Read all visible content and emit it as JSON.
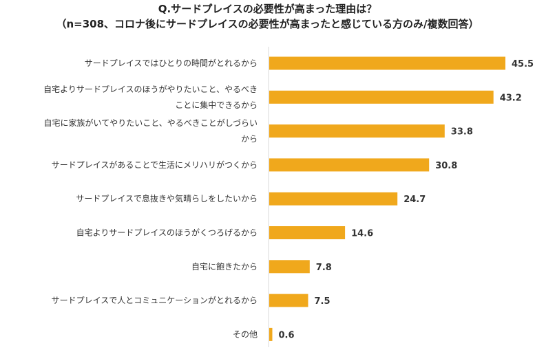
{
  "chart_data": {
    "type": "bar",
    "orientation": "horizontal",
    "title": "Q.サードプレイスの必要性が高まった理由は？",
    "subtitle": "（n=308、コロナ後にサードプレイスの必要性が高まったと感じている方のみ/複数回答）",
    "categories": [
      [
        "サードプレイスではひとりの時間がとれるから"
      ],
      [
        "自宅よりサードプレイスのほうがやりたいこと、やるべき",
        "ことに集中できるから"
      ],
      [
        "自宅に家族がいてやりたいこと、やるべきことがしづらい",
        "から"
      ],
      [
        "サードプレイスがあることで生活にメリハリがつくから"
      ],
      [
        "サードプレイスで息抜きや気晴らしをしたいから"
      ],
      [
        "自宅よりサードプレイスのほうがくつろげるから"
      ],
      [
        "自宅に飽きたから"
      ],
      [
        "サードプレイスで人とコミュニケーションがとれるから"
      ],
      [
        "その他"
      ]
    ],
    "values": [
      45.5,
      43.2,
      33.8,
      30.8,
      24.7,
      14.6,
      7.8,
      7.5,
      0.6
    ],
    "value_labels": [
      "45.5",
      "43.2",
      "33.8",
      "30.8",
      "24.7",
      "14.6",
      "7.8",
      "7.5",
      "0.6"
    ],
    "xlim": [
      0,
      50
    ],
    "bar_color": "#F0A81C",
    "axis_line_color": "#D9D9D9",
    "grid": false,
    "legend": "none"
  }
}
